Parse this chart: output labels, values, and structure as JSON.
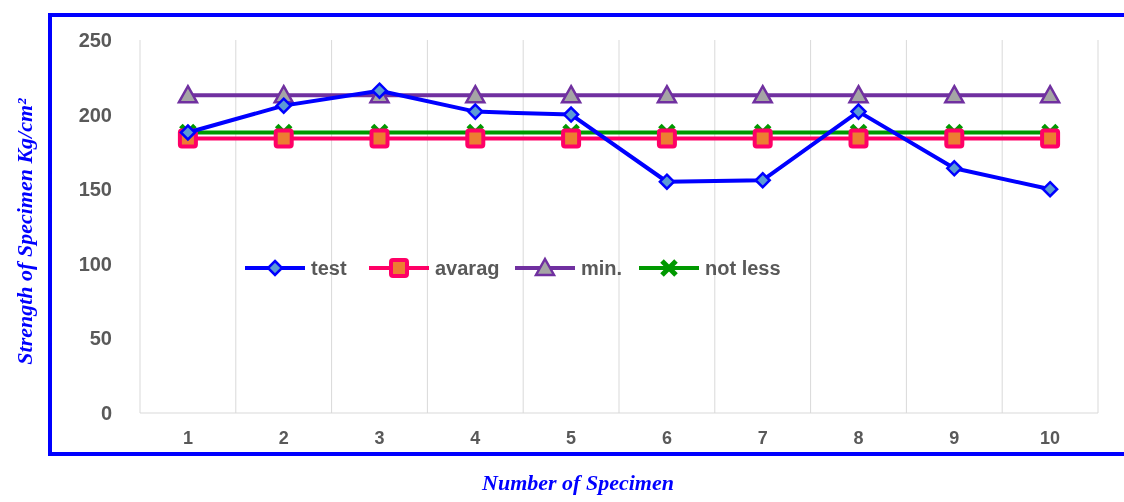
{
  "chart_data": {
    "type": "line",
    "xlabel": "Number of Specimen",
    "ylabel": "Strength of Specimen Kg/cm²",
    "categories": [
      "1",
      "2",
      "3",
      "4",
      "5",
      "6",
      "7",
      "8",
      "9",
      "10"
    ],
    "ylim": [
      0,
      250
    ],
    "yticks": [
      0,
      50,
      100,
      150,
      200,
      250
    ],
    "grid": "x",
    "legend": "left",
    "series": [
      {
        "name": "test",
        "color": "#0000ff",
        "marker": "diamond",
        "values": [
          188,
          206,
          216,
          202,
          200,
          155,
          156,
          202,
          164,
          150
        ]
      },
      {
        "name": "avarag",
        "color": "#ff0066",
        "marker": "square",
        "values": [
          184,
          184,
          184,
          184,
          184,
          184,
          184,
          184,
          184,
          184
        ]
      },
      {
        "name": "min.",
        "color": "#7030a0",
        "marker": "triangle",
        "values": [
          213,
          213,
          213,
          213,
          213,
          213,
          213,
          213,
          213,
          213
        ]
      },
      {
        "name": "not less",
        "color": "#009900",
        "marker": "cross",
        "values": [
          188,
          188,
          188,
          188,
          188,
          188,
          188,
          188,
          188,
          188
        ]
      }
    ]
  }
}
